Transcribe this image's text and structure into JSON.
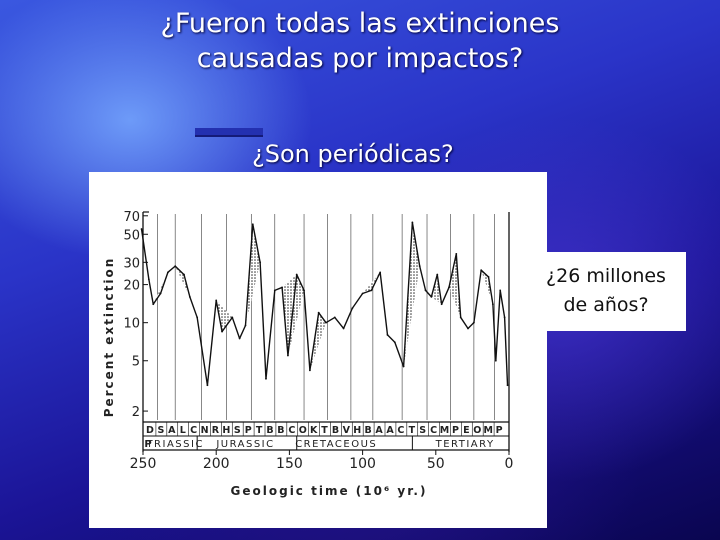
{
  "slide": {
    "title_line1": "¿Fueron todas las extinciones",
    "title_line2": "causadas por impactos?",
    "subtitle": "¿Son periódicas?",
    "callout_line1": "¿26 millones",
    "callout_line2": "de años?"
  },
  "chart_data": {
    "type": "line",
    "ylabel": "Percent extinction",
    "xlabel": "Geologic time (10⁶ yr.)",
    "y_scale": "log",
    "y_ticks": [
      "70",
      "50",
      "30",
      "20",
      "10",
      "5",
      "2"
    ],
    "y_tick_values": [
      70,
      50,
      30,
      20,
      10,
      5,
      2
    ],
    "x_ticks": [
      "250",
      "200",
      "150",
      "100",
      "50",
      "0"
    ],
    "x_tick_values": [
      250,
      200,
      150,
      100,
      50,
      0
    ],
    "xlim": [
      250,
      0
    ],
    "stage_abbreviations": [
      "D",
      "S",
      "A",
      "L",
      "C",
      "N",
      "R",
      "H",
      "S",
      "P",
      "T",
      "B",
      "B",
      "C",
      "O",
      "K",
      "T",
      "B",
      "V",
      "H",
      "B",
      "A",
      "A",
      "C",
      "T",
      "S",
      "C",
      "M",
      "P",
      "E",
      "O",
      "M",
      "P"
    ],
    "periods": [
      "TRIASSIC",
      "JURASSIC",
      "CRETACEOUS",
      "TERTIARY"
    ],
    "period_boundary_letter": "P",
    "x": [
      251,
      246,
      243,
      238,
      233,
      228,
      222,
      218,
      213,
      206,
      200,
      196,
      189,
      184,
      180,
      175,
      170,
      166,
      160,
      155,
      151,
      145,
      140,
      136,
      130,
      125,
      119,
      113,
      107,
      100,
      94,
      88,
      83,
      78,
      72,
      66,
      61,
      57,
      53,
      49,
      46,
      41,
      36,
      33,
      28,
      24,
      19,
      14,
      11,
      9,
      6,
      3,
      1
    ],
    "y": [
      55,
      22,
      14,
      17,
      25,
      28,
      24,
      16,
      11,
      3.2,
      15,
      8.5,
      11,
      7.5,
      9.5,
      60,
      30,
      3.6,
      18,
      19,
      5.5,
      24,
      18,
      4.2,
      12,
      10,
      11,
      9,
      13,
      17,
      18,
      25,
      8,
      7,
      4.5,
      62,
      28,
      18,
      16,
      24,
      14,
      19,
      35,
      11,
      9,
      10,
      26,
      23,
      14,
      5,
      18,
      11,
      3.2
    ],
    "shaded_peaks": [
      251,
      240,
      222,
      196,
      176,
      151,
      143,
      128,
      96,
      66,
      49,
      36,
      14
    ]
  }
}
